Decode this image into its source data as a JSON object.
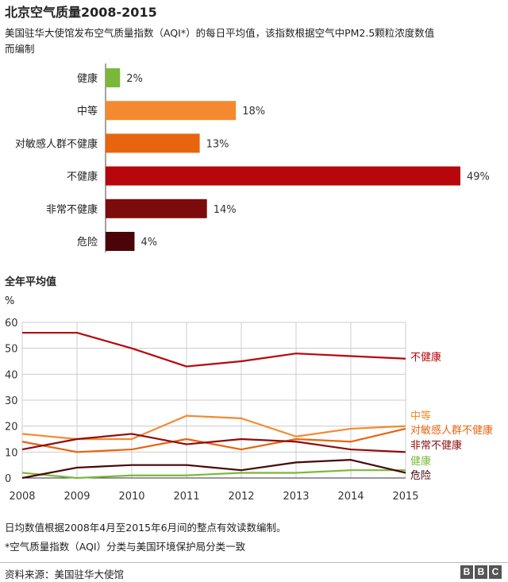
{
  "title": "北京空气质量2008-2015",
  "subtitle_lines": [
    "美国驻华大使馆发布空气质量指数（AQI*）的每日平均值，该指数根据空气中PM2.5颗粒浓度数值",
    "而编制"
  ],
  "chart_data": [
    {
      "type": "bar",
      "orientation": "horizontal",
      "categories": [
        "健康",
        "中等",
        "对敏感人群不健康",
        "不健康",
        "非常不健康",
        "危险"
      ],
      "values": [
        2,
        18,
        13,
        49,
        14,
        4
      ],
      "value_labels": [
        "2%",
        "18%",
        "13%",
        "49%",
        "14%",
        "4%"
      ],
      "colors": [
        "#7bb83a",
        "#f5892f",
        "#e8640f",
        "#b7060c",
        "#7d0b0b",
        "#4a0508"
      ]
    },
    {
      "type": "line",
      "title": "全年平均值",
      "ylabel": "%",
      "x": [
        2008,
        2009,
        2010,
        2011,
        2012,
        2013,
        2014,
        2015
      ],
      "ylim": [
        0,
        60
      ],
      "yticks": [
        0,
        10,
        20,
        30,
        40,
        50,
        60
      ],
      "grid": true,
      "series": [
        {
          "name": "不健康",
          "color": "#b7060c",
          "values": [
            56,
            56,
            50,
            43,
            45,
            48,
            47,
            46
          ]
        },
        {
          "name": "中等",
          "color": "#f5892f",
          "values": [
            17,
            15,
            15,
            24,
            23,
            16,
            19,
            20
          ]
        },
        {
          "name": "对敏感人群不健康",
          "color": "#e8640f",
          "values": [
            14,
            10,
            11,
            15,
            11,
            15,
            14,
            19
          ]
        },
        {
          "name": "非常不健康",
          "color": "#8c0d0d",
          "values": [
            11,
            15,
            17,
            13,
            15,
            14,
            11,
            10
          ]
        },
        {
          "name": "健康",
          "color": "#7bb83a",
          "values": [
            2,
            0,
            1,
            1,
            2,
            2,
            3,
            3
          ]
        },
        {
          "name": "危险",
          "color": "#4a0508",
          "values": [
            0,
            4,
            5,
            5,
            3,
            6,
            7,
            2
          ]
        }
      ]
    }
  ],
  "notes": [
    "日均数值根据2008年4月至2015年6月间的整点有效读数编制。",
    "*空气质量指数（AQI）分类与美国环境保护局分类一致"
  ],
  "source": "资料来源：美国驻华大使馆",
  "logo_letters": [
    "B",
    "B",
    "C"
  ]
}
